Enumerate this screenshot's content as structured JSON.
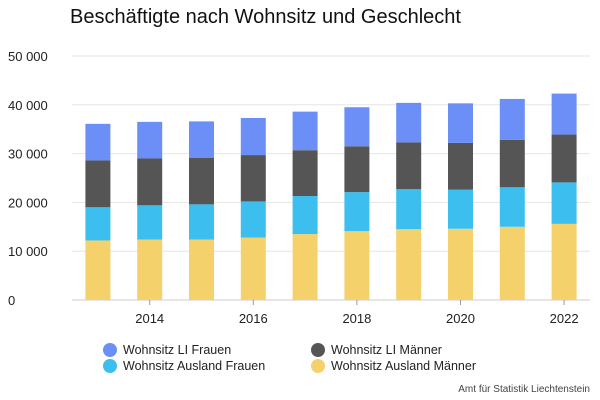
{
  "chart_data": {
    "type": "bar",
    "stacked": true,
    "title": "Beschäftigte nach Wohnsitz und Geschlecht",
    "source": "Amt für Statistik Liechtenstein",
    "categories": [
      "2013",
      "2014",
      "2015",
      "2016",
      "2017",
      "2018",
      "2019",
      "2020",
      "2021",
      "2022"
    ],
    "x_tick_labels": [
      "2014",
      "2016",
      "2018",
      "2020",
      "2022"
    ],
    "y_tick_labels": [
      "0",
      "10 000",
      "20 000",
      "30 000",
      "40 000",
      "50 000"
    ],
    "ylim": [
      0,
      50000
    ],
    "grid": true,
    "legend_position": "bottom",
    "series": [
      {
        "name": "Wohnsitz Ausland Männer",
        "color": "#f5d16c",
        "values": [
          12200,
          12400,
          12400,
          12800,
          13500,
          14100,
          14500,
          14600,
          15000,
          15600
        ]
      },
      {
        "name": "Wohnsitz Ausland Frauen",
        "color": "#3cbfef",
        "values": [
          6800,
          7000,
          7200,
          7400,
          7800,
          8000,
          8200,
          8000,
          8100,
          8500
        ]
      },
      {
        "name": "Wohnsitz LI Männer",
        "color": "#555555",
        "values": [
          9600,
          9600,
          9500,
          9500,
          9400,
          9400,
          9600,
          9600,
          9700,
          9800
        ]
      },
      {
        "name": "Wohnsitz LI Frauen",
        "color": "#6b8ff7",
        "values": [
          7500,
          7500,
          7500,
          7600,
          7900,
          8000,
          8100,
          8100,
          8400,
          8400
        ]
      }
    ]
  },
  "legend": [
    {
      "label": "Wohnsitz LI Frauen",
      "color": "#6b8ff7"
    },
    {
      "label": "Wohnsitz LI Männer",
      "color": "#555555"
    },
    {
      "label": "Wohnsitz Ausland Frauen",
      "color": "#3cbfef"
    },
    {
      "label": "Wohnsitz Ausland Männer",
      "color": "#f5d16c"
    }
  ]
}
